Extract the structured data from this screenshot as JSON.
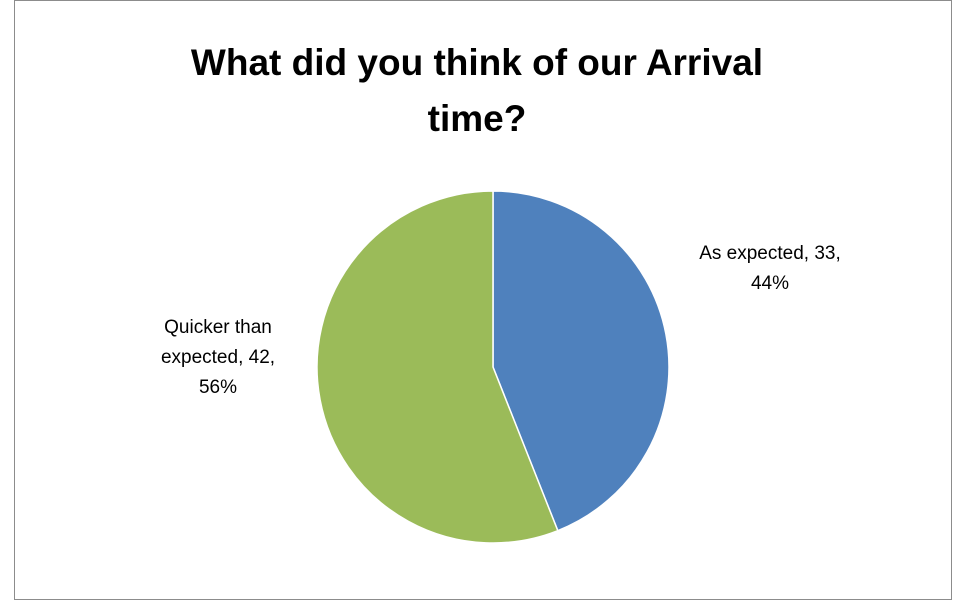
{
  "chart_data": {
    "type": "pie",
    "title": "What did you think of our Arrival\ntime?",
    "slices": [
      {
        "label": "As expected",
        "value": 33,
        "percent": "44%",
        "color": "#4f81bd",
        "label_lines": [
          "As expected, 33,",
          "44%"
        ]
      },
      {
        "label": "Quicker than expected",
        "value": 42,
        "percent": "56%",
        "color": "#9bbb59",
        "label_lines": [
          "Quicker than",
          "expected, 42,",
          "56%"
        ]
      }
    ],
    "start_angle_deg": 0,
    "direction": "clockwise",
    "legend": "none"
  }
}
